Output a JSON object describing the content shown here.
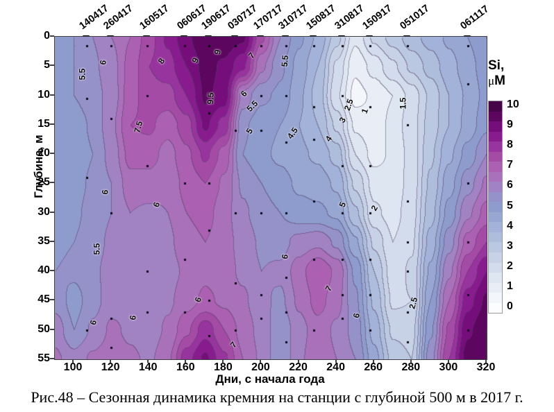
{
  "figure": {
    "caption": "Рис.48 – Сезонная динамика кремния на станции с глубиной 500 м в 2017 г."
  },
  "axes": {
    "x": {
      "label": "Дни, с начала года",
      "ticks": [
        "100",
        "120",
        "140",
        "160",
        "180",
        "200",
        "220",
        "240",
        "260",
        "280",
        "300",
        "320"
      ],
      "range": [
        90,
        320
      ]
    },
    "y": {
      "label": "Глубина, м",
      "ticks": [
        "0",
        "5",
        "10",
        "15",
        "20",
        "25",
        "30",
        "35",
        "40",
        "45",
        "50",
        "55"
      ],
      "range": [
        0,
        55
      ]
    }
  },
  "colorbar": {
    "title": "Si,",
    "mu": "μ",
    "unit": "M",
    "ticks": [
      "10",
      "9",
      "8",
      "7",
      "6",
      "5",
      "4",
      "3",
      "2",
      "1",
      "0"
    ]
  },
  "chart_data": {
    "type": "heatmap",
    "title": "",
    "xlabel": "Дни, с начала года",
    "ylabel": "Глубина, м",
    "zlabel": "Si, μM",
    "zlim": [
      0,
      10
    ],
    "contour_interval": 0.5,
    "grid": false,
    "x_days": [
      90,
      100,
      110,
      120,
      130,
      140,
      150,
      160,
      170,
      180,
      190,
      200,
      210,
      220,
      230,
      240,
      250,
      260,
      270,
      280,
      290,
      300,
      310,
      320
    ],
    "y_depths": [
      0,
      5,
      10,
      15,
      20,
      25,
      30,
      35,
      40,
      45,
      50,
      55
    ],
    "values": [
      [
        5.3,
        5.5,
        6.0,
        6.5,
        7.0,
        7.8,
        8.6,
        9.4,
        10.0,
        9.9,
        9.6,
        7.6,
        6.0,
        5.1,
        4.4,
        3.2,
        1.6,
        2.6,
        3.2,
        3.8,
        4.2,
        4.6,
        5.0,
        5.5
      ],
      [
        5.4,
        5.5,
        5.9,
        6.3,
        7.2,
        8.0,
        8.3,
        9.0,
        9.7,
        9.4,
        8.6,
        6.6,
        5.6,
        4.8,
        4.0,
        2.4,
        1.1,
        1.7,
        2.4,
        3.1,
        3.7,
        4.3,
        4.8,
        5.3
      ],
      [
        5.4,
        5.5,
        5.8,
        6.2,
        7.3,
        7.8,
        7.8,
        8.5,
        9.6,
        9.3,
        6.3,
        5.6,
        5.4,
        4.6,
        3.8,
        2.1,
        0.8,
        1.1,
        1.5,
        2.2,
        3.1,
        4.0,
        4.6,
        5.2
      ],
      [
        5.2,
        5.2,
        5.6,
        6.4,
        7.5,
        7.6,
        7.2,
        7.8,
        9.1,
        8.3,
        5.6,
        5.2,
        5.0,
        4.5,
        4.0,
        2.9,
        1.4,
        1.1,
        1.7,
        2.3,
        3.2,
        4.0,
        4.7,
        5.4
      ],
      [
        5.1,
        5.1,
        5.5,
        6.2,
        7.2,
        7.2,
        6.8,
        7.4,
        8.1,
        7.3,
        5.5,
        5.1,
        4.9,
        4.6,
        4.4,
        3.8,
        2.0,
        1.3,
        1.6,
        2.2,
        3.4,
        4.4,
        5.2,
        6.0
      ],
      [
        5.2,
        5.3,
        5.6,
        6.0,
        6.8,
        6.8,
        6.6,
        7.2,
        7.5,
        6.9,
        5.9,
        5.5,
        5.2,
        4.9,
        4.8,
        4.4,
        2.9,
        1.8,
        1.7,
        2.2,
        3.6,
        4.8,
        5.8,
        6.6
      ],
      [
        5.3,
        5.4,
        5.7,
        6.0,
        6.5,
        6.4,
        6.5,
        7.0,
        7.2,
        6.7,
        6.1,
        5.7,
        5.5,
        5.2,
        5.1,
        4.9,
        3.6,
        2.1,
        1.8,
        2.3,
        3.8,
        5.2,
        6.4,
        7.2
      ],
      [
        5.4,
        5.5,
        5.8,
        6.1,
        6.3,
        6.2,
        6.4,
        6.8,
        7.0,
        6.7,
        6.3,
        5.9,
        5.8,
        6.2,
        6.4,
        5.9,
        4.6,
        2.9,
        2.0,
        2.4,
        4.2,
        5.8,
        7.2,
        8.0
      ],
      [
        5.5,
        5.6,
        5.9,
        6.2,
        6.2,
        6.1,
        6.3,
        6.6,
        6.9,
        6.7,
        6.4,
        6.0,
        6.1,
        6.8,
        7.5,
        6.9,
        5.4,
        3.5,
        2.2,
        2.6,
        4.6,
        6.4,
        8.0,
        9.0
      ],
      [
        5.8,
        5.3,
        5.8,
        6.3,
        6.2,
        6.1,
        6.4,
        6.8,
        7.1,
        6.9,
        6.6,
        6.1,
        5.9,
        6.6,
        7.2,
        6.7,
        5.6,
        3.9,
        2.4,
        2.5,
        5.0,
        7.0,
        8.8,
        9.6
      ],
      [
        6.3,
        5.5,
        6.1,
        6.6,
        6.4,
        6.2,
        6.6,
        7.4,
        8.3,
        7.5,
        6.8,
        6.3,
        5.6,
        6.3,
        6.8,
        6.4,
        5.8,
        4.3,
        2.9,
        2.8,
        5.4,
        7.6,
        9.4,
        10.0
      ],
      [
        6.6,
        6.2,
        6.6,
        6.8,
        6.6,
        6.4,
        6.9,
        8.3,
        9.1,
        8.1,
        7.0,
        6.4,
        5.5,
        6.4,
        6.9,
        6.5,
        6.0,
        4.7,
        3.3,
        3.0,
        5.8,
        8.0,
        9.8,
        10.0
      ]
    ],
    "colormap": [
      "#fbfdfe",
      "#f3f6fa",
      "#e9eef6",
      "#dee6f1",
      "#d3dcec",
      "#c7d2e7",
      "#bbc8e2",
      "#afbddd",
      "#a3b2d8",
      "#97a7d2",
      "#8d9ccd",
      "#9591c9",
      "#a183c3",
      "#a971ba",
      "#ab60b1",
      "#a44ba6",
      "#98349d",
      "#881c8e",
      "#750e7a",
      "#5c0660",
      "#460449"
    ],
    "stations": [
      {
        "label": "140417",
        "day": 107,
        "dots": [
          1.5,
          10.5,
          24,
          50
        ]
      },
      {
        "label": "260417",
        "day": 120,
        "dots": [
          1.5,
          14,
          30,
          48,
          53
        ]
      },
      {
        "label": "160517",
        "day": 139,
        "dots": [
          1.5,
          10,
          22,
          40,
          47
        ]
      },
      {
        "label": "060617",
        "day": 159,
        "dots": [
          1.5,
          25,
          38,
          47
        ]
      },
      {
        "label": "190617",
        "day": 172,
        "dots": [
          1.5,
          13,
          25,
          33,
          45,
          51
        ]
      },
      {
        "label": "030717",
        "day": 186,
        "dots": [
          1.5,
          16,
          30,
          42,
          50
        ]
      },
      {
        "label": "170717",
        "day": 200,
        "dots": [
          1.5,
          10,
          16,
          30,
          44,
          48
        ]
      },
      {
        "label": "310717",
        "day": 213,
        "dots": [
          1.5,
          4.5,
          10,
          18,
          30,
          41,
          47,
          52
        ]
      },
      {
        "label": "150817",
        "day": 228,
        "dots": [
          1.5,
          12,
          17.5,
          28,
          38,
          50
        ]
      },
      {
        "label": "310817",
        "day": 243,
        "dots": [
          1.5,
          10,
          22,
          30,
          38,
          44,
          48
        ]
      },
      {
        "label": "150917",
        "day": 258,
        "dots": [
          1.5,
          12,
          22,
          30,
          38,
          44,
          50
        ]
      },
      {
        "label": "051017",
        "day": 278,
        "dots": [
          1.5,
          15,
          28,
          35,
          40,
          47,
          52
        ]
      },
      {
        "label": "061117",
        "day": 310,
        "dots": [
          1.5,
          8,
          25,
          35,
          44,
          50
        ]
      }
    ],
    "contour_labels": [
      {
        "v": "5.5",
        "day": 104,
        "depth": 6.5,
        "rot": -90
      },
      {
        "v": "6",
        "day": 117,
        "depth": 4.5,
        "rot": -80
      },
      {
        "v": "7.5",
        "day": 134,
        "depth": 15.5,
        "rot": -75
      },
      {
        "v": "8",
        "day": 148,
        "depth": 4.3,
        "rot": -55
      },
      {
        "v": "9",
        "day": 166,
        "depth": 4.1,
        "rot": -65
      },
      {
        "v": "9",
        "day": 178,
        "depth": 2.7,
        "rot": -80
      },
      {
        "v": "9.5",
        "day": 172.5,
        "depth": 10.7,
        "rot": -87
      },
      {
        "v": "7",
        "day": 196,
        "depth": 3.3,
        "rot": -50
      },
      {
        "v": "6",
        "day": 192,
        "depth": 9.8,
        "rot": -45
      },
      {
        "v": "5.5",
        "day": 194.5,
        "depth": 12,
        "rot": -45
      },
      {
        "v": "5.5",
        "day": 212,
        "depth": 4.3,
        "rot": -85
      },
      {
        "v": "5",
        "day": 195,
        "depth": 16.2,
        "rot": -60
      },
      {
        "v": "4.5",
        "day": 216,
        "depth": 16.6,
        "rot": -55
      },
      {
        "v": "4",
        "day": 237,
        "depth": 17.5,
        "rot": -55
      },
      {
        "v": "3",
        "day": 244.5,
        "depth": 14.3,
        "rot": -60
      },
      {
        "v": "2.5",
        "day": 246,
        "depth": 11.7,
        "rot": -70
      },
      {
        "v": "1",
        "day": 256.5,
        "depth": 12.8,
        "rot": -70
      },
      {
        "v": "1.5",
        "day": 275,
        "depth": 11.5,
        "rot": -90
      },
      {
        "v": "2",
        "day": 261.5,
        "depth": 29.3,
        "rot": -60
      },
      {
        "v": "5",
        "day": 244.5,
        "depth": 28.7,
        "rot": -70
      },
      {
        "v": "6",
        "day": 118,
        "depth": 26.6,
        "rot": -85
      },
      {
        "v": "6",
        "day": 145.5,
        "depth": 28.8,
        "rot": -70
      },
      {
        "v": "5.5",
        "day": 112,
        "depth": 36.3,
        "rot": -90
      },
      {
        "v": "6",
        "day": 112,
        "depth": 48.9,
        "rot": -75
      },
      {
        "v": "6",
        "day": 133,
        "depth": 48,
        "rot": -80
      },
      {
        "v": "6",
        "day": 167.8,
        "depth": 45,
        "rot": -70
      },
      {
        "v": "7",
        "day": 186.6,
        "depth": 52.6,
        "rot": -50
      },
      {
        "v": "6",
        "day": 214,
        "depth": 37.6,
        "rot": -80
      },
      {
        "v": "7",
        "day": 237,
        "depth": 43,
        "rot": -60
      },
      {
        "v": "6",
        "day": 251.8,
        "depth": 47.7,
        "rot": -75
      },
      {
        "v": "2.5",
        "day": 280.5,
        "depth": 45.5,
        "rot": -75
      }
    ]
  }
}
